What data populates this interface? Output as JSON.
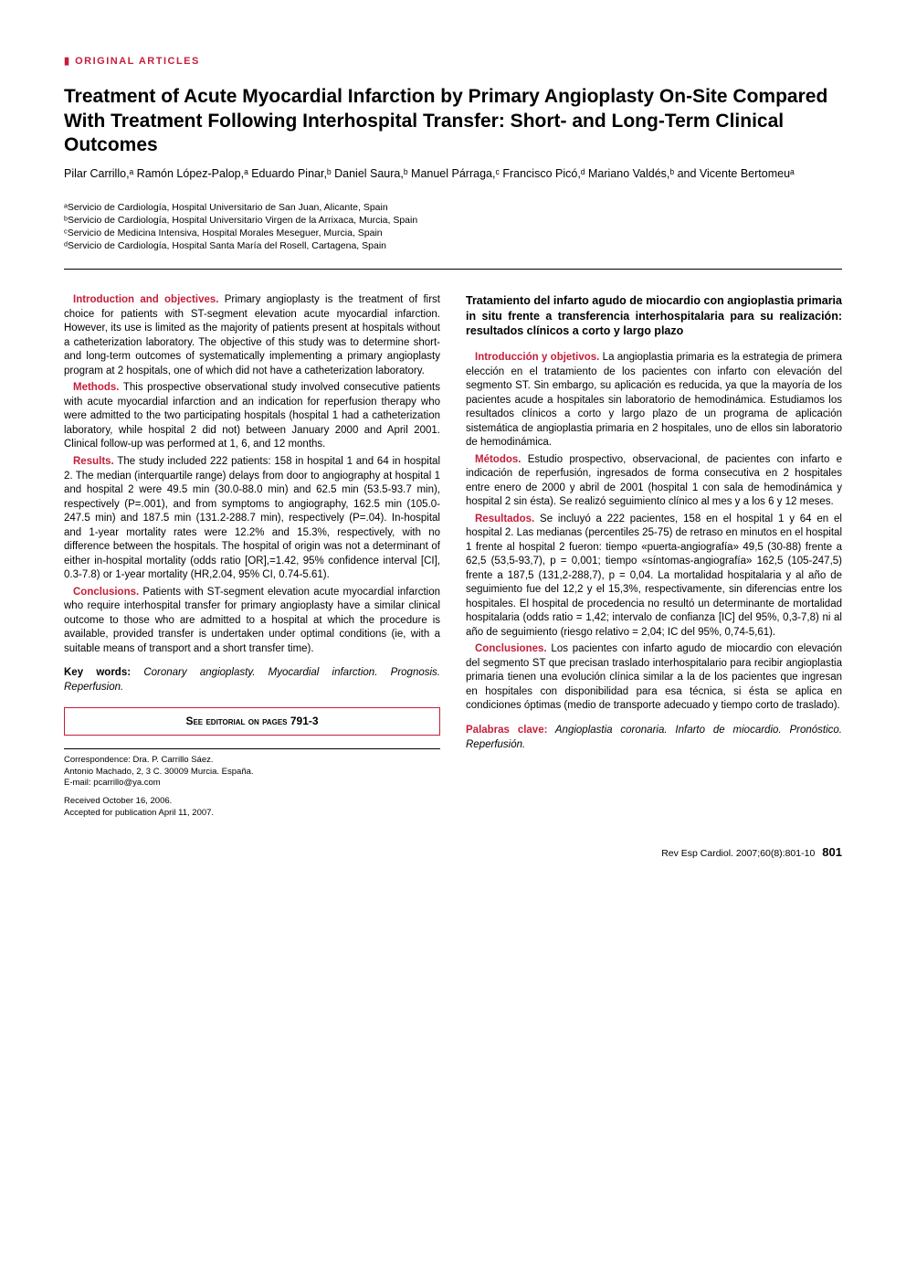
{
  "section_label": "ORIGINAL ARTICLES",
  "title": "Treatment of Acute Myocardial Infarction by Primary Angioplasty On-Site Compared With Treatment Following Interhospital Transfer: Short- and Long-Term Clinical Outcomes",
  "authors_html": "Pilar Carrillo,ᵃ Ramón López-Palop,ᵃ Eduardo Pinar,ᵇ Daniel Saura,ᵇ Manuel Párraga,ᶜ Francisco Picó,ᵈ Mariano Valdés,ᵇ and Vicente Bertomeuᵃ",
  "affiliations": [
    "ᵃServicio de Cardiología, Hospital Universitario de San Juan, Alicante, Spain",
    "ᵇServicio de Cardiología, Hospital Universitario Virgen de la Arrixaca, Murcia, Spain",
    "ᶜServicio de Medicina Intensiva, Hospital Morales Meseguer, Murcia, Spain",
    "ᵈServicio de Cardiología, Hospital Santa María del Rosell, Cartagena, Spain"
  ],
  "english_abstract": {
    "intro": {
      "heading": "Introduction and objectives.",
      "text": " Primary angioplasty is the treatment of first choice for patients with ST-segment elevation acute myocardial infarction. However, its use is limited as the majority of patients present at hospitals without a catheterization laboratory. The objective of this study was to determine short- and long-term outcomes of systematically implementing a primary angioplasty program at 2 hospitals, one of which did not have a catheterization laboratory."
    },
    "methods": {
      "heading": "Methods.",
      "text": " This prospective observational study involved consecutive patients with acute myocardial infarction and an indication for reperfusion therapy who were admitted to the two participating hospitals (hospital 1 had a catheterization laboratory, while hospital 2 did not) between January 2000 and April 2001. Clinical follow-up was performed at 1, 6, and 12 months."
    },
    "results": {
      "heading": "Results.",
      "text": " The study included 222 patients: 158 in hospital 1 and 64 in hospital 2. The median (interquartile range) delays from door to angiography at hospital 1 and hospital 2 were 49.5 min (30.0-88.0 min) and 62.5 min (53.5-93.7 min), respectively (P=.001), and from symptoms to angiography, 162.5 min (105.0-247.5 min) and 187.5 min (131.2-288.7 min), respectively (P=.04). In-hospital and 1-year mortality rates were 12.2% and 15.3%, respectively, with no difference between the hospitals. The hospital of origin was not a determinant of either in-hospital mortality (odds ratio [OR],=1.42, 95% confidence interval [CI], 0.3-7.8) or 1-year mortality (HR,2.04, 95% CI, 0.74-5.61)."
    },
    "conclusions": {
      "heading": "Conclusions.",
      "text": " Patients with ST-segment elevation acute myocardial infarction who require interhospital transfer for primary angioplasty have a similar clinical outcome to those who are admitted to a hospital at which the procedure is available, provided transfer is undertaken under optimal conditions (ie, with a suitable means of transport and a short transfer time)."
    },
    "keywords": {
      "label": "Key words:",
      "text": " Coronary angioplasty. Myocardial infarction. Prognosis. Reperfusion."
    }
  },
  "editorial_box": {
    "prefix": "See editorial on pages ",
    "pages": "791-3"
  },
  "correspondence": {
    "line1": "Correspondence: Dra. P. Carrillo Sáez.",
    "line2": "Antonio Machado, 2, 3 C. 30009 Murcia. España.",
    "line3": "E-mail: pcarrillo@ya.com"
  },
  "dates": {
    "received": "Received October 16, 2006.",
    "accepted": "Accepted for publication April 11, 2007."
  },
  "spanish_title": "Tratamiento del infarto agudo de miocardio con angioplastia primaria in situ frente a transferencia interhospitalaria para su realización: resultados clínicos a corto y largo plazo",
  "spanish_abstract": {
    "intro": {
      "heading": "Introducción y objetivos.",
      "text": " La angioplastia primaria es la estrategia de primera elección en el tratamiento de los pacientes con infarto con elevación del segmento ST. Sin embargo, su aplicación es reducida, ya que la mayoría de los pacientes acude a hospitales sin laboratorio de hemodinámica. Estudiamos los resultados clínicos a corto y largo plazo de un programa de aplicación sistemática de angioplastia primaria en 2 hospitales, uno de ellos sin laboratorio de hemodinámica."
    },
    "methods": {
      "heading": "Métodos.",
      "text": " Estudio prospectivo, observacional, de pacientes con infarto e indicación de reperfusión, ingresados de forma consecutiva en 2 hospitales entre enero de 2000 y abril de 2001 (hospital 1 con sala de hemodinámica y hospital 2 sin ésta). Se realizó seguimiento clínico al mes y a los 6 y 12 meses."
    },
    "results": {
      "heading": "Resultados.",
      "text": " Se incluyó a 222 pacientes, 158 en el hospital 1 y 64 en el hospital 2. Las medianas (percentiles 25-75) de retraso en minutos en el hospital 1 frente al hospital 2 fueron: tiempo «puerta-angiografía» 49,5 (30-88) frente a 62,5 (53,5-93,7), p = 0,001; tiempo «síntomas-angiografía» 162,5 (105-247,5) frente a 187,5 (131,2-288,7), p = 0,04. La mortalidad hospitalaria y al año de seguimiento fue del 12,2 y el 15,3%, respectivamente, sin diferencias entre los hospitales. El hospital de procedencia no resultó un determinante de mortalidad hospitalaria (odds ratio = 1,42; intervalo de confianza [IC] del 95%, 0,3-7,8) ni al año de seguimiento (riesgo relativo = 2,04; IC del 95%, 0,74-5,61)."
    },
    "conclusions": {
      "heading": "Conclusiones.",
      "text": " Los pacientes con infarto agudo de miocardio con elevación del segmento ST que precisan traslado interhospitalario para recibir angioplastia primaria tienen una evolución clínica similar a la de los pacientes que ingresan en hospitales con disponibilidad para esa técnica, si ésta se aplica en condiciones óptimas (medio de transporte adecuado y tiempo corto de traslado)."
    },
    "keywords": {
      "label": "Palabras clave:",
      "text": " Angioplastia coronaria. Infarto de miocardio. Pronóstico. Reperfusión."
    }
  },
  "footer": {
    "citation": "Rev Esp Cardiol. 2007;60(8):801-10",
    "page": "801"
  }
}
